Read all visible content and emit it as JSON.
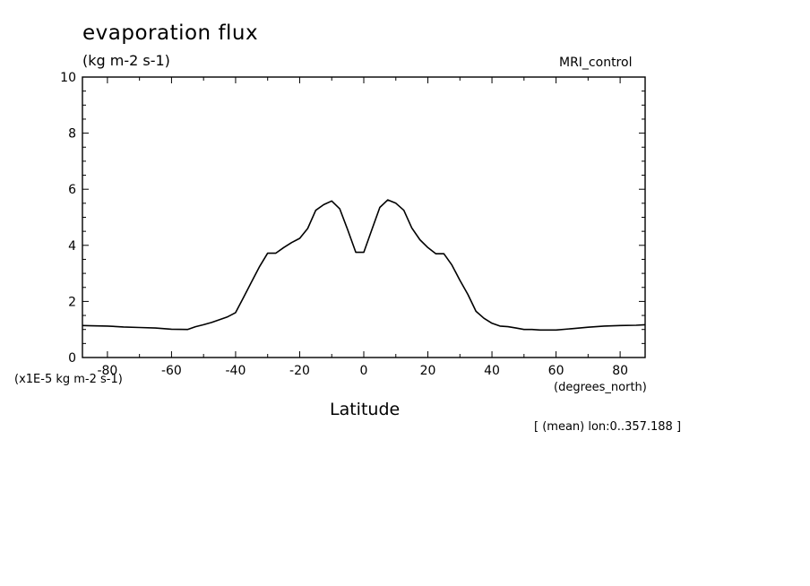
{
  "chart_data": {
    "type": "line",
    "title": "evaporation flux",
    "units": "(kg m-2 s-1)",
    "source_label": "MRI_control",
    "scale_note": "(x1E-5 kg m-2 s-1)",
    "xlabel": "Latitude",
    "x_units": "(degrees_north)",
    "lon_note": "[ (mean) lon:0..357.188 ]",
    "xlim": [
      -87.8,
      87.8
    ],
    "ylim": [
      0,
      10
    ],
    "x_ticks": [
      -80,
      -60,
      -40,
      -20,
      0,
      20,
      40,
      60,
      80
    ],
    "x_tick_labels": [
      "-80",
      "-60",
      "-40",
      "-20",
      "0",
      "20",
      "40",
      "60",
      "80"
    ],
    "y_ticks": [
      0,
      2,
      4,
      6,
      8,
      10
    ],
    "y_tick_labels": [
      "0",
      "2",
      "4",
      "6",
      "8",
      "10"
    ],
    "grid": false,
    "series": [
      {
        "x": [
          -87.8,
          -85,
          -80,
          -75,
          -70,
          -65,
          -60,
          -55,
          -52.5,
          -50,
          -47.5,
          -45,
          -42.5,
          -40,
          -37.5,
          -35,
          -32.5,
          -30,
          -27.5,
          -25,
          -22.5,
          -20,
          -17.5,
          -15,
          -12.5,
          -10,
          -7.5,
          -5,
          -2.5,
          0,
          2.5,
          5,
          7.5,
          10,
          12.5,
          15,
          17.5,
          20,
          22.5,
          25,
          27.5,
          30,
          32.5,
          35,
          37.5,
          40,
          42.5,
          45,
          47.5,
          50,
          52.5,
          55,
          60,
          65,
          70,
          75,
          80,
          85,
          87.8
        ],
        "y": [
          1.14,
          1.13,
          1.12,
          1.09,
          1.07,
          1.05,
          1.01,
          1.0,
          1.1,
          1.17,
          1.25,
          1.35,
          1.45,
          1.6,
          2.15,
          2.7,
          3.25,
          3.72,
          3.72,
          3.92,
          4.1,
          4.25,
          4.6,
          5.25,
          5.45,
          5.58,
          5.3,
          4.55,
          3.75,
          3.75,
          4.55,
          5.35,
          5.62,
          5.5,
          5.25,
          4.62,
          4.2,
          3.92,
          3.7,
          3.7,
          3.3,
          2.75,
          2.25,
          1.65,
          1.4,
          1.22,
          1.12,
          1.1,
          1.05,
          1.0,
          1.0,
          0.98,
          0.98,
          1.03,
          1.08,
          1.12,
          1.14,
          1.15,
          1.17
        ]
      }
    ]
  }
}
